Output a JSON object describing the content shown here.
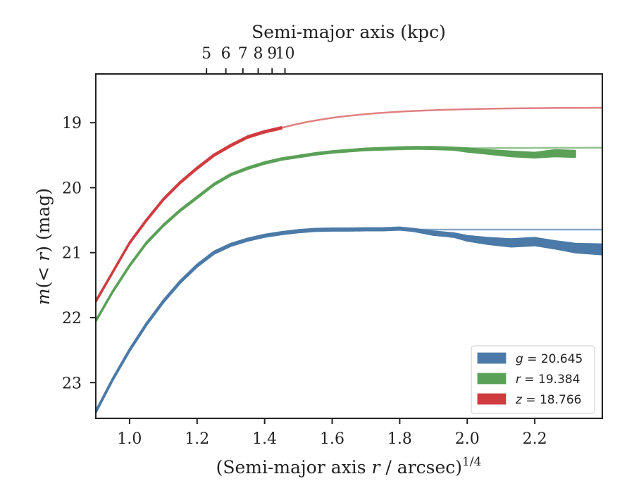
{
  "chart_data": {
    "type": "line",
    "xlabel_main": "(Semi-major axis ",
    "xlabel_var": "r",
    "xlabel_tail": " / arcsec)",
    "xlabel_exp": "1/4",
    "ylabel_m": "m",
    "ylabel_mid": "(< ",
    "ylabel_r": "r",
    "ylabel_tail": ") (mag)",
    "top_xlabel": "Semi-major axis (kpc)",
    "xlim": [
      0.9,
      2.4
    ],
    "ylim": [
      23.55,
      18.25
    ],
    "y_inverted": true,
    "x_ticks": [
      1.0,
      1.2,
      1.4,
      1.6,
      1.8,
      2.0,
      2.2
    ],
    "x_tick_labels": [
      "1.0",
      "1.2",
      "1.4",
      "1.6",
      "1.8",
      "2.0",
      "2.2"
    ],
    "y_ticks": [
      19,
      20,
      21,
      22,
      23
    ],
    "y_tick_labels": [
      "19",
      "20",
      "21",
      "22",
      "23"
    ],
    "top_ticks_kpc": [
      5,
      6,
      7,
      8,
      9,
      10
    ],
    "top_tick_labels": [
      "5",
      "6",
      "7",
      "8",
      "9",
      "10"
    ],
    "kpc_scale": 2.2,
    "grid": false,
    "legend_position": "lower-right",
    "series": [
      {
        "name": "g",
        "legend": "g = 20.645",
        "band": "g",
        "value": "20.645",
        "color": "#4c7aa8",
        "asymptote": 20.645,
        "x": [
          0.9,
          0.95,
          1.0,
          1.05,
          1.1,
          1.15,
          1.2,
          1.25,
          1.3,
          1.35,
          1.4,
          1.45,
          1.5,
          1.55,
          1.6,
          1.65,
          1.7,
          1.75,
          1.8,
          1.84,
          1.9,
          1.96,
          2.0,
          2.06,
          2.13,
          2.2,
          2.26,
          2.32,
          2.4
        ],
        "y": [
          23.45,
          22.95,
          22.5,
          22.1,
          21.75,
          21.45,
          21.2,
          21.0,
          20.88,
          20.8,
          20.74,
          20.7,
          20.67,
          20.65,
          20.645,
          20.645,
          20.64,
          20.64,
          20.63,
          20.65,
          20.7,
          20.73,
          20.78,
          20.82,
          20.85,
          20.83,
          20.88,
          20.93,
          20.95
        ],
        "err": [
          0.02,
          0.02,
          0.02,
          0.02,
          0.02,
          0.02,
          0.02,
          0.02,
          0.02,
          0.02,
          0.02,
          0.02,
          0.02,
          0.02,
          0.02,
          0.02,
          0.02,
          0.02,
          0.02,
          0.02,
          0.03,
          0.03,
          0.04,
          0.05,
          0.06,
          0.06,
          0.06,
          0.07,
          0.08
        ],
        "x_end": 2.4
      },
      {
        "name": "r",
        "legend": "r = 19.384",
        "band": "r",
        "value": "19.384",
        "color": "#5aa157",
        "asymptote": 19.384,
        "x": [
          0.9,
          0.95,
          1.0,
          1.05,
          1.1,
          1.15,
          1.2,
          1.25,
          1.3,
          1.35,
          1.4,
          1.45,
          1.5,
          1.55,
          1.6,
          1.65,
          1.7,
          1.75,
          1.8,
          1.84,
          1.9,
          1.96,
          2.0,
          2.06,
          2.13,
          2.2,
          2.26,
          2.32
        ],
        "y": [
          22.05,
          21.6,
          21.2,
          20.85,
          20.58,
          20.35,
          20.15,
          19.95,
          19.8,
          19.7,
          19.62,
          19.56,
          19.52,
          19.48,
          19.45,
          19.43,
          19.41,
          19.4,
          19.39,
          19.385,
          19.39,
          19.4,
          19.42,
          19.45,
          19.48,
          19.5,
          19.47,
          19.48
        ],
        "err": [
          0.015,
          0.015,
          0.015,
          0.015,
          0.015,
          0.015,
          0.015,
          0.015,
          0.015,
          0.015,
          0.015,
          0.015,
          0.015,
          0.015,
          0.015,
          0.015,
          0.015,
          0.015,
          0.015,
          0.015,
          0.02,
          0.02,
          0.03,
          0.03,
          0.04,
          0.04,
          0.05,
          0.05
        ],
        "x_end": 2.32
      },
      {
        "name": "z",
        "legend": "z = 18.766",
        "band": "z",
        "value": "18.766",
        "color": "#cf3c3f",
        "asymptote": 18.766,
        "x": [
          0.9,
          0.95,
          1.0,
          1.05,
          1.1,
          1.15,
          1.2,
          1.25,
          1.3,
          1.35,
          1.4,
          1.45
        ],
        "y": [
          21.75,
          21.3,
          20.85,
          20.5,
          20.18,
          19.92,
          19.7,
          19.5,
          19.35,
          19.22,
          19.14,
          19.08
        ],
        "err": [
          0.015,
          0.015,
          0.015,
          0.015,
          0.015,
          0.015,
          0.015,
          0.015,
          0.015,
          0.015,
          0.015,
          0.015
        ],
        "x_end": 1.45
      }
    ]
  }
}
